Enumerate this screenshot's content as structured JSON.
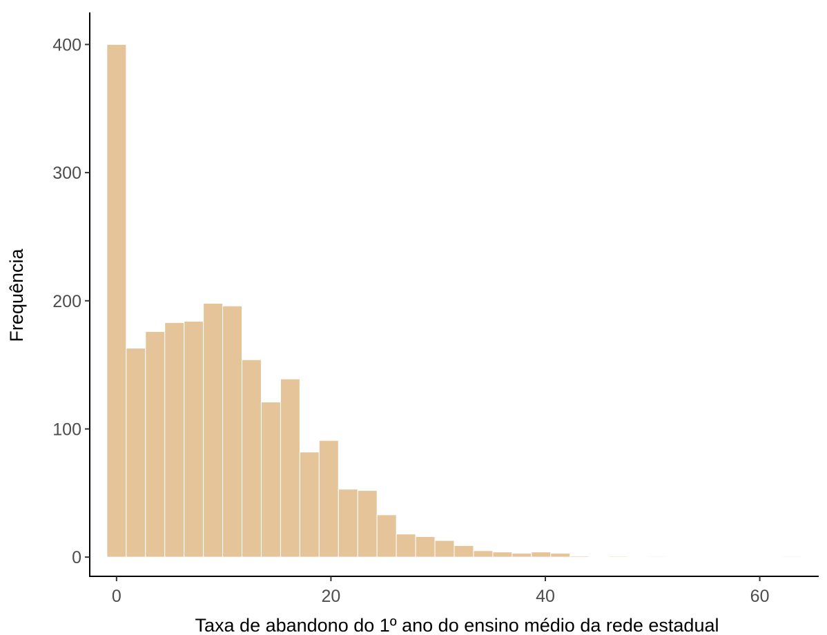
{
  "chart_data": {
    "type": "bar",
    "title": "",
    "xlabel": "Taxa de abandono do 1º ano do ensino médio da rede estadual",
    "ylabel": "Frequência",
    "xlim": [
      -2.5,
      65.5
    ],
    "ylim": [
      -15,
      425
    ],
    "x_ticks": [
      0,
      20,
      40,
      60
    ],
    "y_ticks": [
      0,
      100,
      200,
      300,
      400
    ],
    "grid": false,
    "bin_width": 1.8,
    "bins_start": -0.9,
    "fill_color": "#e6c49a",
    "edge_color": "#ffffff",
    "values": [
      400,
      163,
      176,
      183,
      184,
      198,
      196,
      154,
      121,
      139,
      82,
      91,
      53,
      52,
      33,
      18,
      16,
      13,
      9,
      5,
      4,
      3,
      4,
      3,
      0.8,
      0.2,
      0.7,
      0.2,
      0.6,
      0.2,
      0.2,
      0.5,
      0.2,
      0.2,
      0.2,
      0.6
    ]
  }
}
